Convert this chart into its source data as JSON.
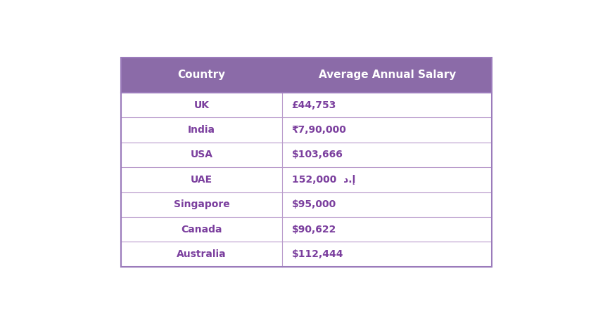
{
  "header": [
    "Country",
    "Average Annual Salary"
  ],
  "rows": [
    [
      "UK",
      "£44,753"
    ],
    [
      "India",
      "₹7,90,000"
    ],
    [
      "USA",
      "$103,666"
    ],
    [
      "UAE",
      "152,000  د.إ"
    ],
    [
      "Singapore",
      "$95,000"
    ],
    [
      "Canada",
      "$90,622"
    ],
    [
      "Australia",
      "$112,444"
    ]
  ],
  "header_bg_color": "#8B6BA8",
  "header_text_color": "#FFFFFF",
  "row_text_color": "#7B3F9E",
  "border_color": "#B89ACB",
  "row_bg_color": "#FFFFFF",
  "outer_border_color": "#9B7BBB",
  "table_bg": "#FFFFFF",
  "fig_bg": "#FFFFFF",
  "header_fontsize": 11,
  "row_fontsize": 10,
  "col_split": 0.435
}
